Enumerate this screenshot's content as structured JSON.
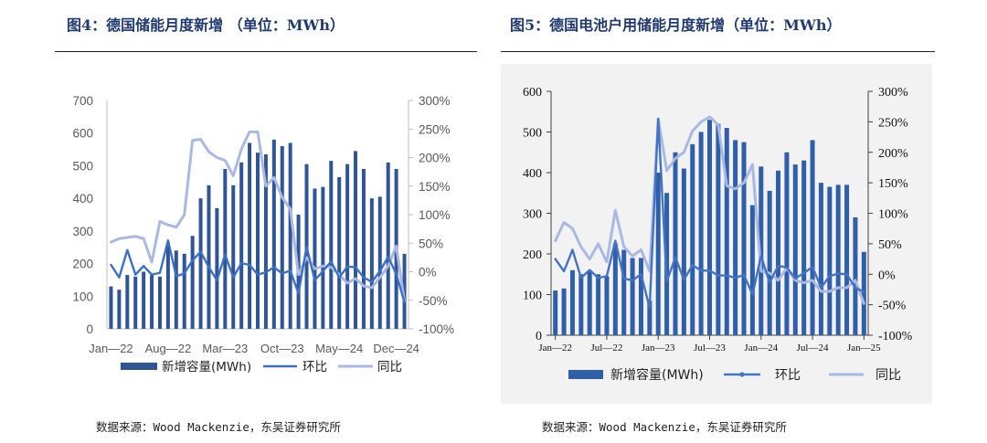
{
  "chart_data": [
    {
      "type": "bar",
      "title": "图4：德国储能月度新增 （单位：MWh）",
      "source": "数据来源：Wood Mackenzie，东吴证券研究所",
      "x": [
        "2022-01",
        "2022-02",
        "2022-03",
        "2022-04",
        "2022-05",
        "2022-06",
        "2022-07",
        "2022-08",
        "2022-09",
        "2022-10",
        "2022-11",
        "2022-12",
        "2023-01",
        "2023-02",
        "2023-03",
        "2023-04",
        "2023-05",
        "2023-06",
        "2023-07",
        "2023-08",
        "2023-09",
        "2023-10",
        "2023-11",
        "2023-12",
        "2024-01",
        "2024-02",
        "2024-03",
        "2024-04",
        "2024-05",
        "2024-06",
        "2024-07",
        "2024-08",
        "2024-09",
        "2024-10",
        "2024-11",
        "2024-12",
        "2025-01"
      ],
      "x_ticks": [
        {
          "x": "2022-01",
          "label": "Jan—22"
        },
        {
          "x": "2022-08",
          "label": "Aug—22"
        },
        {
          "x": "2023-03",
          "label": "Mar—23"
        },
        {
          "x": "2023-10",
          "label": "Oct—23"
        },
        {
          "x": "2024-05",
          "label": "May—24"
        },
        {
          "x": "2024-12",
          "label": "Dec—24"
        }
      ],
      "ylim": [
        0,
        700
      ],
      "y_ticks": [
        "0",
        "100",
        "200",
        "300",
        "400",
        "500",
        "600",
        "700"
      ],
      "y2lim": [
        -100,
        300
      ],
      "y2_ticks": [
        "-100%",
        "-50%",
        "0%",
        "50%",
        "100%",
        "150%",
        "200%",
        "250%",
        "300%"
      ],
      "grid": false,
      "legend": "bottom",
      "series": [
        {
          "name": "新增容量(MWh)",
          "type": "bar",
          "axis": "left",
          "color": "#2f5597",
          "values": [
            130,
            120,
            165,
            160,
            175,
            165,
            160,
            265,
            240,
            230,
            285,
            400,
            440,
            370,
            490,
            440,
            510,
            570,
            540,
            535,
            580,
            560,
            570,
            350,
            505,
            430,
            435,
            515,
            465,
            505,
            545,
            490,
            400,
            405,
            510,
            490,
            230
          ]
        },
        {
          "name": "环比",
          "type": "line",
          "axis": "right",
          "color": "#3b70c4",
          "values": [
            12,
            -10,
            38,
            -5,
            10,
            -5,
            -2,
            55,
            -8,
            -3,
            20,
            35,
            8,
            -15,
            30,
            -10,
            15,
            12,
            -5,
            -1,
            8,
            -3,
            2,
            -38,
            44,
            -15,
            1,
            18,
            -10,
            9,
            8,
            -10,
            -18,
            1,
            26,
            -4,
            -53
          ]
        },
        {
          "name": "同比",
          "type": "line",
          "axis": "right",
          "color": "#a9b9e3",
          "values": [
            52,
            58,
            60,
            62,
            58,
            17,
            88,
            82,
            78,
            100,
            230,
            232,
            210,
            200,
            195,
            168,
            215,
            245,
            245,
            150,
            165,
            130,
            110,
            -5,
            25,
            5,
            10,
            8,
            -5,
            -20,
            -12,
            -25,
            -28,
            -10,
            10,
            45,
            -52
          ]
        }
      ]
    },
    {
      "type": "bar",
      "title": "图5：德国电池户用储能月度新增（单位：MWh）",
      "source": "数据来源：Wood Mackenzie，东吴证券研究所",
      "x": [
        "2022-01",
        "2022-02",
        "2022-03",
        "2022-04",
        "2022-05",
        "2022-06",
        "2022-07",
        "2022-08",
        "2022-09",
        "2022-10",
        "2022-11",
        "2022-12",
        "2023-01",
        "2023-02",
        "2023-03",
        "2023-04",
        "2023-05",
        "2023-06",
        "2023-07",
        "2023-08",
        "2023-09",
        "2023-10",
        "2023-11",
        "2023-12",
        "2024-01",
        "2024-02",
        "2024-03",
        "2024-04",
        "2024-05",
        "2024-06",
        "2024-07",
        "2024-08",
        "2024-09",
        "2024-10",
        "2024-11",
        "2024-12",
        "2025-01"
      ],
      "x_ticks": [
        {
          "x": "2022-01",
          "label": "Jan—22"
        },
        {
          "x": "2022-07",
          "label": "Jul—22"
        },
        {
          "x": "2023-01",
          "label": "Jan—23"
        },
        {
          "x": "2023-07",
          "label": "Jul—23"
        },
        {
          "x": "2024-01",
          "label": "Jan—24"
        },
        {
          "x": "2024-07",
          "label": "Jul—24"
        },
        {
          "x": "2025-01",
          "label": "Jan—25"
        }
      ],
      "ylim": [
        0,
        600
      ],
      "y_ticks": [
        "0",
        "100",
        "200",
        "300",
        "400",
        "500",
        "600"
      ],
      "y2lim": [
        -100,
        300
      ],
      "y2_ticks": [
        "-100%",
        "-50%",
        "0%",
        "50%",
        "100%",
        "150%",
        "200%",
        "250%",
        "300%"
      ],
      "grid": false,
      "legend": "bottom",
      "background": "#f2f2f2",
      "series": [
        {
          "name": "新增容量(MWh)",
          "type": "bar",
          "axis": "left",
          "color": "#2e5fa8",
          "values": [
            110,
            115,
            160,
            150,
            160,
            150,
            145,
            225,
            210,
            190,
            190,
            85,
            400,
            350,
            450,
            410,
            470,
            500,
            530,
            520,
            510,
            480,
            475,
            320,
            415,
            355,
            405,
            450,
            420,
            430,
            480,
            375,
            365,
            370,
            370,
            290,
            205
          ]
        },
        {
          "name": "环比",
          "type": "line",
          "axis": "right",
          "color": "#4472c4",
          "values": [
            25,
            5,
            40,
            -6,
            7,
            -6,
            -3,
            55,
            -7,
            -10,
            0,
            -55,
            255,
            -12,
            28,
            -9,
            15,
            6,
            6,
            -2,
            -2,
            -6,
            -1,
            -33,
            30,
            -14,
            14,
            11,
            -7,
            2,
            12,
            -22,
            -3,
            1,
            0,
            -22,
            -29
          ]
        },
        {
          "name": "同比",
          "type": "line",
          "axis": "right",
          "color": "#a9b9e3",
          "values": [
            55,
            85,
            75,
            45,
            25,
            50,
            20,
            105,
            45,
            30,
            40,
            5,
            255,
            170,
            190,
            200,
            235,
            250,
            258,
            245,
            145,
            140,
            150,
            180,
            5,
            2,
            -10,
            10,
            -10,
            -14,
            -10,
            -28,
            -28,
            -22,
            -22,
            -10,
            -48
          ]
        }
      ]
    }
  ]
}
